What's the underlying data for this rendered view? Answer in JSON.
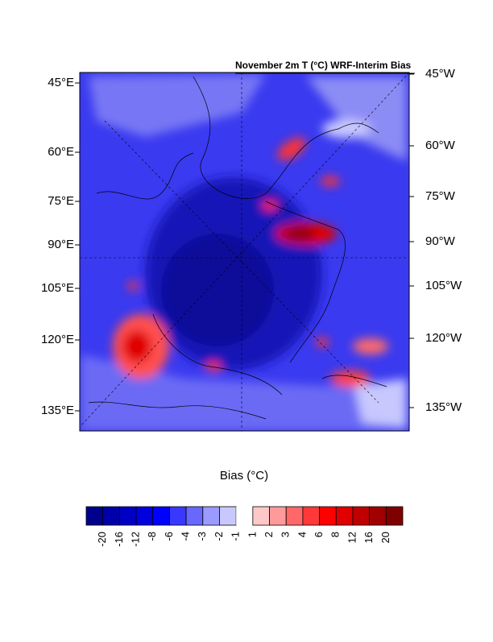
{
  "map": {
    "title": "November 2m T (°C) WRF-Interim Bias",
    "left_labels": [
      "45°E",
      "60°E",
      "75°E",
      "90°E",
      "105°E",
      "120°E",
      "135°E"
    ],
    "right_labels": [
      "45°W",
      "60°W",
      "75°W",
      "90°W",
      "105°W",
      "120°W",
      "135°W"
    ]
  },
  "colorbar": {
    "title": "Bias (°C)",
    "levels": [
      -20,
      -16,
      -12,
      -8,
      -6,
      -4,
      -3,
      -2,
      -1,
      1,
      2,
      3,
      4,
      6,
      8,
      12,
      16,
      20
    ],
    "colors": [
      "#00008c",
      "#0000a8",
      "#0000c4",
      "#0000de",
      "#0000ff",
      "#3838ff",
      "#6868ff",
      "#9a9aff",
      "#c8c8ff",
      "#ffffff",
      "#ffc8c8",
      "#ff9a9a",
      "#ff6868",
      "#ff3838",
      "#ff0000",
      "#e00000",
      "#c00000",
      "#a00000",
      "#800000"
    ]
  }
}
